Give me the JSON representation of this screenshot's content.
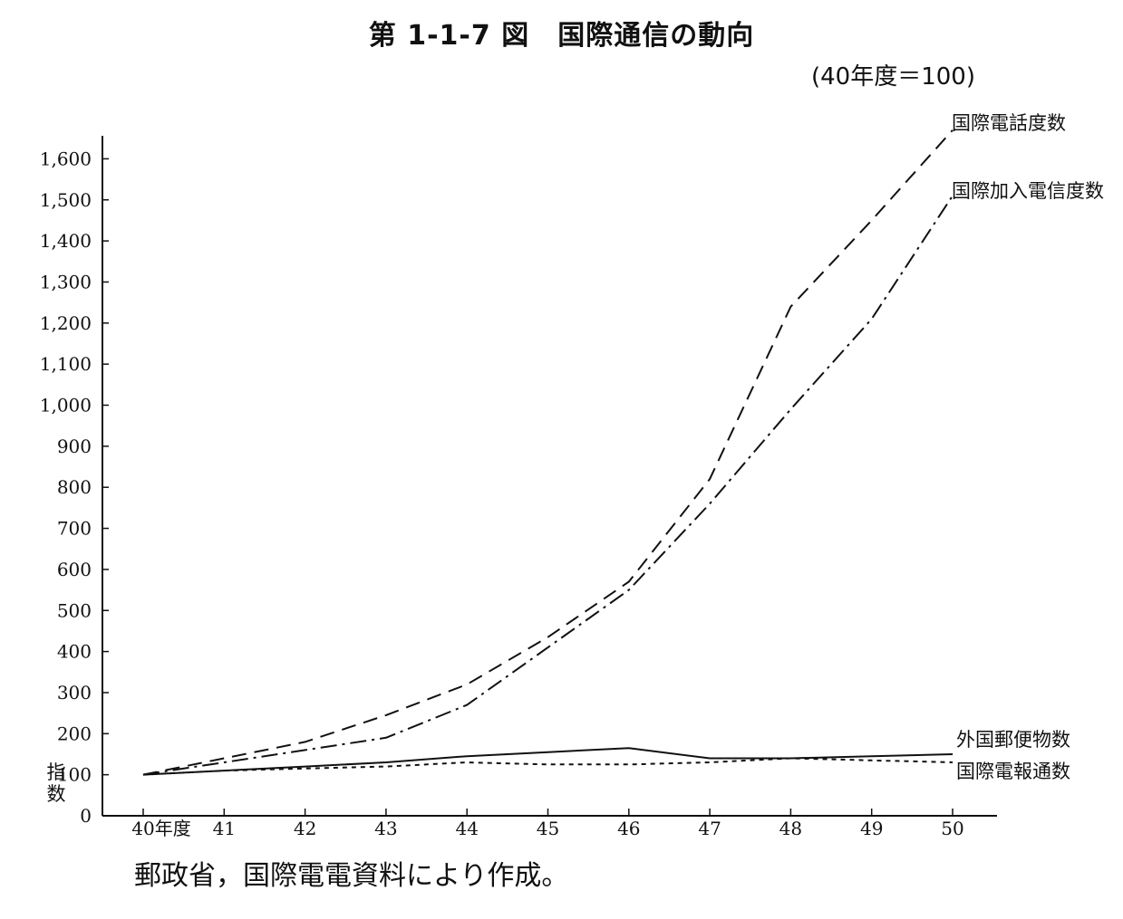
{
  "header": {
    "title": "第 1-1-7 図　国際通信の動向",
    "subtitle": "(40年度＝100)"
  },
  "footer": {
    "source": "郵政省，国際電電資料により作成。"
  },
  "chart_data": {
    "type": "line",
    "ylabel": "指数",
    "x": [
      "40年度",
      "41",
      "42",
      "43",
      "44",
      "45",
      "46",
      "47",
      "48",
      "49",
      "50"
    ],
    "ylim": [
      0,
      1600
    ],
    "yticks": [
      "0",
      "100",
      "200",
      "300",
      "400",
      "500",
      "600",
      "700",
      "800",
      "900",
      "1,000",
      "1,100",
      "1,200",
      "1,300",
      "1,400",
      "1,500",
      "1,600"
    ],
    "grid": false,
    "legend": "line-end labels (right)",
    "series": [
      {
        "name": "国際電話度数",
        "style": "dashed",
        "values": [
          100,
          140,
          180,
          245,
          320,
          435,
          570,
          820,
          1240,
          1450,
          1670
        ]
      },
      {
        "name": "国際加入電信度数",
        "style": "dashdot",
        "values": [
          100,
          130,
          160,
          190,
          270,
          410,
          550,
          760,
          990,
          1210,
          1510
        ]
      },
      {
        "name": "外国郵便物数",
        "style": "solid",
        "values": [
          100,
          110,
          120,
          130,
          145,
          155,
          165,
          140,
          140,
          145,
          150
        ]
      },
      {
        "name": "国際電報通数",
        "style": "dotted",
        "values": [
          100,
          110,
          115,
          120,
          130,
          125,
          125,
          130,
          140,
          135,
          130
        ]
      }
    ]
  }
}
